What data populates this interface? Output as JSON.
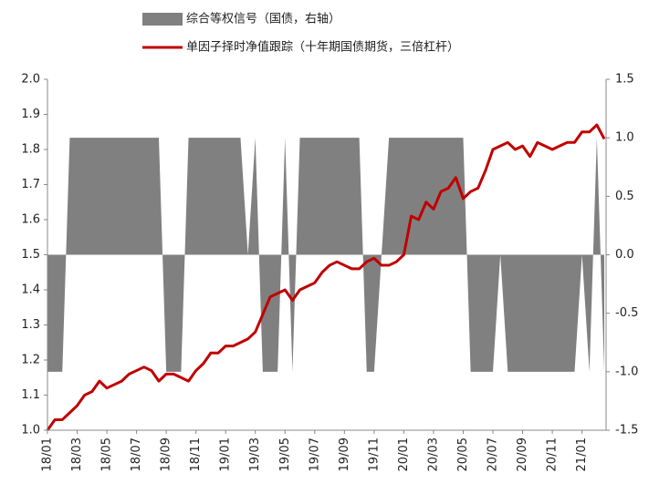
{
  "chart_data": {
    "type": "line",
    "categories": [
      "18/01",
      null,
      null,
      null,
      "18/03",
      null,
      null,
      null,
      "18/05",
      null,
      null,
      null,
      "18/07",
      null,
      null,
      null,
      "18/09",
      null,
      null,
      null,
      "18/11",
      null,
      null,
      null,
      "19/01",
      null,
      null,
      null,
      "19/03",
      null,
      null,
      null,
      "19/05",
      null,
      null,
      null,
      "19/07",
      null,
      null,
      null,
      "19/09",
      null,
      null,
      null,
      "19/11",
      null,
      null,
      null,
      "20/01",
      null,
      null,
      null,
      "20/03",
      null,
      null,
      null,
      "20/05",
      null,
      null,
      null,
      "20/07",
      null,
      null,
      null,
      "20/09",
      null,
      null,
      null,
      "20/11",
      null,
      null,
      null,
      "21/01",
      null,
      null,
      null
    ],
    "series": [
      {
        "name": "综合等权信号（国债，右轴）",
        "type": "area",
        "axis": "y2",
        "color": "#808080",
        "values": [
          -1,
          -1,
          -1,
          1,
          1,
          1,
          1,
          1,
          1,
          1,
          1,
          1,
          1,
          1,
          1,
          1,
          -1,
          -1,
          -1,
          1,
          1,
          1,
          1,
          1,
          1,
          1,
          1,
          0,
          1,
          -1,
          -1,
          -1,
          1,
          -1,
          1,
          1,
          1,
          1,
          1,
          1,
          1,
          1,
          1,
          -1,
          -1,
          0,
          1,
          1,
          1,
          1,
          1,
          1,
          1,
          1,
          1,
          1,
          1,
          -1,
          -1,
          -1,
          -1,
          0,
          -1,
          -1,
          -1,
          -1,
          -1,
          -1,
          -1,
          -1,
          -1,
          -1,
          0,
          -1,
          1,
          -1
        ]
      },
      {
        "name": "单因子择时净值跟踪（十年期国债期货，三倍杠杆）",
        "type": "line",
        "color": "#c00000",
        "values": [
          1.0,
          1.03,
          1.03,
          1.05,
          1.07,
          1.1,
          1.11,
          1.14,
          1.12,
          1.13,
          1.14,
          1.16,
          1.17,
          1.18,
          1.17,
          1.14,
          1.16,
          1.16,
          1.15,
          1.14,
          1.17,
          1.19,
          1.22,
          1.22,
          1.24,
          1.24,
          1.25,
          1.26,
          1.28,
          1.33,
          1.38,
          1.39,
          1.4,
          1.37,
          1.4,
          1.41,
          1.42,
          1.45,
          1.47,
          1.48,
          1.47,
          1.46,
          1.46,
          1.48,
          1.49,
          1.47,
          1.47,
          1.48,
          1.5,
          1.61,
          1.6,
          1.65,
          1.63,
          1.68,
          1.69,
          1.72,
          1.66,
          1.68,
          1.69,
          1.74,
          1.8,
          1.81,
          1.82,
          1.8,
          1.81,
          1.78,
          1.82,
          1.81,
          1.8,
          1.81,
          1.82,
          1.82,
          1.85,
          1.85,
          1.87,
          1.83
        ]
      }
    ],
    "ylim": [
      1.0,
      2.0
    ],
    "yticks": [
      {
        "value": 1.0,
        "label": "1.0"
      },
      1.1,
      1.2,
      1.3,
      1.4,
      1.5,
      1.6,
      1.7,
      1.8,
      1.9,
      {
        "value": 2.0,
        "label": "2.0"
      }
    ],
    "y2lim": [
      -1.5,
      1.5
    ],
    "y2ticks": [
      -1.5,
      {
        "value": -1.0,
        "label": "-1.0"
      },
      -0.5,
      {
        "value": 0.0,
        "label": "0.0"
      },
      0.5,
      {
        "value": 1.0,
        "label": "1.0"
      },
      1.5
    ],
    "legend": "top",
    "grid": false
  }
}
